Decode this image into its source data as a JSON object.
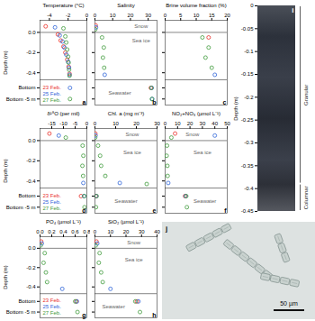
{
  "chart_data": [
    {
      "type": "scatter",
      "panel": "a",
      "xlabel": "Temperature (°C)",
      "ylabel": "Depth (m)",
      "xlim": [
        -5,
        0
      ],
      "xticks": [
        -4,
        -2,
        0
      ],
      "ylim": [
        -0.72,
        0.12
      ],
      "yticks": [
        {
          "value": 0,
          "label": "0.0"
        },
        -0.2,
        -0.4,
        {
          "value": -0.55,
          "label": "Bottom"
        },
        {
          "value": -0.66,
          "label": "Bottom -5 m"
        }
      ],
      "rules": [
        0,
        -0.47
      ],
      "marker": "open-circle",
      "legend": "bottom-left",
      "series": [
        {
          "name": "23 Feb.",
          "color": "#e8302a",
          "x": [
            -4.4,
            -3.1,
            -2.8,
            -2.5,
            -2.3,
            -2.1,
            -1.95,
            -1.85
          ],
          "y": [
            0.06,
            -0.02,
            -0.08,
            -0.14,
            -0.2,
            -0.27,
            -0.34,
            -0.41
          ]
        },
        {
          "name": "25 Feb.",
          "color": "#2e64d8",
          "x": [
            -3.4,
            -2.9,
            -2.6,
            -2.4,
            -2.2,
            -2.0,
            -1.9,
            -1.85,
            -1.8
          ],
          "y": [
            0.05,
            -0.03,
            -0.09,
            -0.15,
            -0.22,
            -0.29,
            -0.35,
            -0.42,
            -0.55
          ]
        },
        {
          "name": "27 Feb.",
          "color": "#3f9b3b",
          "x": [
            -2.5,
            -2.3,
            -2.2,
            -2.1,
            -2.0,
            -1.95,
            -1.9,
            -1.85,
            -1.8
          ],
          "y": [
            0.04,
            -0.04,
            -0.1,
            -0.17,
            -0.24,
            -0.3,
            -0.37,
            -0.43,
            -0.66
          ]
        }
      ]
    },
    {
      "type": "scatter",
      "panel": "b",
      "xlabel": "Salinity",
      "xlim": [
        0,
        35
      ],
      "xticks": [
        0,
        10,
        20,
        30
      ],
      "ylim": [
        -0.72,
        0.12
      ],
      "yticks": [
        0,
        -0.2,
        -0.4,
        -0.55,
        -0.66
      ],
      "tick_labels": "x",
      "rules": [
        0,
        -0.47
      ],
      "marker": "open-circle",
      "annotations": [
        {
          "text": "Snow",
          "x": 26,
          "y": 0.06
        },
        {
          "text": "Sea ice",
          "x": 26,
          "y": -0.08
        },
        {
          "text": "Seawater",
          "x": 14,
          "y": -0.6
        }
      ],
      "series": [
        {
          "color": "#e8302a",
          "x": [
            0.4,
            31.5
          ],
          "y": [
            0.07,
            -0.55
          ]
        },
        {
          "color": "#2e64d8",
          "x": [
            0.6,
            5.5,
            32.0,
            32.3
          ],
          "y": [
            0.05,
            -0.42,
            -0.55,
            -0.66
          ]
        },
        {
          "color": "#3f9b3b",
          "x": [
            0.2,
            4.0,
            5.0,
            4.5,
            5.2,
            31.8,
            32.1
          ],
          "y": [
            0.03,
            -0.05,
            -0.15,
            -0.25,
            -0.35,
            -0.55,
            -0.66
          ]
        }
      ]
    },
    {
      "type": "scatter",
      "panel": "c",
      "xlabel": "Brine volume fraction (%)",
      "xlim": [
        0,
        20
      ],
      "xticks": [
        0,
        5,
        10,
        15,
        20
      ],
      "ylim": [
        -0.72,
        0.12
      ],
      "yticks": [
        0,
        -0.2,
        -0.4,
        -0.55,
        -0.66
      ],
      "tick_labels": "x",
      "rules": [
        0,
        -0.47
      ],
      "marker": "open-circle",
      "series": [
        {
          "color": "#e8302a",
          "x": [
            14
          ],
          "y": [
            -0.05
          ]
        },
        {
          "color": "#2e64d8",
          "x": [
            16
          ],
          "y": [
            -0.42
          ]
        },
        {
          "color": "#3f9b3b",
          "x": [
            12,
            14,
            13,
            15
          ],
          "y": [
            -0.05,
            -0.15,
            -0.25,
            -0.35
          ]
        }
      ]
    },
    {
      "type": "scatter",
      "panel": "d",
      "xlabel": "δ¹⁸O (per mil)",
      "ylabel": "Depth (m)",
      "xlim": [
        -20,
        0
      ],
      "xticks": [
        -15,
        -10,
        -5,
        0
      ],
      "ylim": [
        -0.72,
        0.12
      ],
      "yticks": [
        {
          "value": 0,
          "label": "0.0"
        },
        -0.2,
        -0.4,
        {
          "value": -0.55,
          "label": "Bottom"
        },
        {
          "value": -0.66,
          "label": "Bottom -5 m"
        }
      ],
      "rules": [
        0,
        -0.47
      ],
      "marker": "open-circle",
      "legend": "bottom-left",
      "series": [
        {
          "name": "23 Feb.",
          "color": "#e8302a",
          "x": [
            -16,
            -2.5
          ],
          "y": [
            0.07,
            -0.55
          ]
        },
        {
          "name": "25 Feb.",
          "color": "#2e64d8",
          "x": [
            -12,
            -1.5,
            -1.2
          ],
          "y": [
            0.05,
            -0.42,
            -0.55
          ]
        },
        {
          "name": "27 Feb.",
          "color": "#3f9b3b",
          "x": [
            -9,
            -1.8,
            -1.5,
            -1.9,
            -1.6,
            -1.1,
            -1.0
          ],
          "y": [
            0.03,
            -0.05,
            -0.15,
            -0.25,
            -0.35,
            -0.55,
            -0.66
          ]
        }
      ]
    },
    {
      "type": "scatter",
      "panel": "e",
      "xlabel": "Chl. a (mg m⁻³)",
      "xlim": [
        0,
        30
      ],
      "xticks": [
        0,
        10,
        20,
        30
      ],
      "ylim": [
        -0.72,
        0.12
      ],
      "yticks": [
        0,
        -0.2,
        -0.4,
        -0.55,
        -0.66
      ],
      "tick_labels": "x",
      "rules": [
        0,
        -0.47
      ],
      "marker": "open-circle",
      "annotations": [
        {
          "text": "Snow",
          "x": 18,
          "y": 0.06
        },
        {
          "text": "Sea ice",
          "x": 18,
          "y": -0.12
        },
        {
          "text": "Seawater",
          "x": 15,
          "y": -0.6
        }
      ],
      "series": [
        {
          "color": "#e8302a",
          "x": [
            0.2,
            0.5
          ],
          "y": [
            0.07,
            -0.55
          ]
        },
        {
          "color": "#2e64d8",
          "x": [
            0.3,
            12,
            0.6
          ],
          "y": [
            0.05,
            -0.42,
            -0.55
          ]
        },
        {
          "color": "#3f9b3b",
          "x": [
            0.1,
            1.5,
            2.5,
            3.0,
            5.0,
            25,
            0.8,
            0.5
          ],
          "y": [
            0.03,
            -0.05,
            -0.15,
            -0.25,
            -0.35,
            -0.43,
            -0.55,
            -0.66
          ]
        }
      ]
    },
    {
      "type": "scatter",
      "panel": "f",
      "xlabel": "NO₂+NO₃ (µmol L⁻¹)",
      "xlim": [
        0,
        50
      ],
      "xticks": [
        0,
        10,
        20,
        30,
        40,
        50
      ],
      "ylim": [
        -0.72,
        0.12
      ],
      "yticks": [
        0,
        -0.2,
        -0.4,
        -0.55,
        -0.66
      ],
      "tick_labels": "x",
      "rules": [
        0,
        -0.47
      ],
      "marker": "open-circle",
      "annotations": [
        {
          "text": "Snow",
          "x": 22,
          "y": 0.06
        },
        {
          "text": "Sea ice",
          "x": 30,
          "y": -0.12
        },
        {
          "text": "Seawater",
          "x": 32,
          "y": -0.6
        }
      ],
      "series": [
        {
          "color": "#e8302a",
          "x": [
            8,
            16
          ],
          "y": [
            0.07,
            -0.55
          ]
        },
        {
          "color": "#2e64d8",
          "x": [
            40,
            2.5,
            16.5
          ],
          "y": [
            0.05,
            -0.42,
            -0.55
          ]
        },
        {
          "color": "#3f9b3b",
          "x": [
            5,
            1.5,
            1.2,
            1.8,
            2.0,
            17,
            17.5
          ],
          "y": [
            0.03,
            -0.05,
            -0.15,
            -0.25,
            -0.35,
            -0.55,
            -0.66
          ]
        }
      ]
    },
    {
      "type": "scatter",
      "panel": "g",
      "xlabel": "PO₄ (µmol L⁻¹)",
      "ylabel": "Depth (m)",
      "xlim": [
        0,
        0.8
      ],
      "xticks": [
        {
          "value": 0,
          "label": "0.0"
        },
        0.2,
        0.4,
        0.6,
        0.8
      ],
      "ylim": [
        -0.72,
        0.12
      ],
      "yticks": [
        {
          "value": 0,
          "label": "0.0"
        },
        -0.2,
        -0.4,
        {
          "value": -0.55,
          "label": "Bottom"
        },
        {
          "value": -0.66,
          "label": "Bottom -5 m"
        }
      ],
      "rules": [
        0,
        -0.47
      ],
      "marker": "open-circle",
      "legend": "bottom-left",
      "series": [
        {
          "name": "23 Feb.",
          "color": "#e8302a",
          "x": [
            0.02,
            0.62
          ],
          "y": [
            0.07,
            -0.55
          ]
        },
        {
          "name": "25 Feb.",
          "color": "#2e64d8",
          "x": [
            0.03,
            0.38,
            0.63
          ],
          "y": [
            0.05,
            -0.42,
            -0.55
          ]
        },
        {
          "name": "27 Feb.",
          "color": "#3f9b3b",
          "x": [
            0.01,
            0.08,
            0.06,
            0.1,
            0.12,
            0.6,
            0.64
          ],
          "y": [
            0.03,
            -0.05,
            -0.15,
            -0.25,
            -0.35,
            -0.55,
            -0.66
          ]
        }
      ]
    },
    {
      "type": "scatter",
      "panel": "h",
      "xlabel": "SiO₂ (µmol L⁻¹)",
      "xlim": [
        0,
        40
      ],
      "xticks": [
        0,
        10,
        20,
        30,
        40
      ],
      "ylim": [
        -0.72,
        0.12
      ],
      "yticks": [
        0,
        -0.2,
        -0.4,
        -0.55,
        -0.66
      ],
      "tick_labels": "x",
      "rules": [
        0,
        -0.47
      ],
      "marker": "open-circle",
      "annotations": [
        {
          "text": "Snow",
          "x": 25,
          "y": 0.06
        },
        {
          "text": "Sea ice",
          "x": 25,
          "y": -0.12
        },
        {
          "text": "Seawater",
          "x": 12,
          "y": -0.6
        }
      ],
      "series": [
        {
          "color": "#e8302a",
          "x": [
            1,
            27
          ],
          "y": [
            0.07,
            -0.55
          ]
        },
        {
          "color": "#2e64d8",
          "x": [
            1.5,
            10,
            28
          ],
          "y": [
            0.05,
            -0.42,
            -0.55
          ]
        },
        {
          "color": "#3f9b3b",
          "x": [
            0.5,
            3,
            2.5,
            4,
            5,
            26,
            29
          ],
          "y": [
            0.03,
            -0.05,
            -0.15,
            -0.25,
            -0.35,
            -0.55,
            -0.66
          ]
        }
      ]
    },
    {
      "type": "image",
      "panel": "i",
      "ylabel": "Depth (m)",
      "ylim": [
        -0.45,
        0
      ],
      "yticks": [
        0,
        -0.05,
        -0.1,
        -0.15,
        -0.2,
        -0.25,
        -0.3,
        -0.35,
        -0.4,
        -0.45
      ],
      "zones": [
        {
          "label": "Granular",
          "from": 0,
          "to": -0.39
        },
        {
          "label": "Columnar",
          "from": -0.39,
          "to": -0.45
        }
      ]
    },
    {
      "type": "image",
      "panel": "j",
      "scale_bar": "50 µm"
    }
  ]
}
